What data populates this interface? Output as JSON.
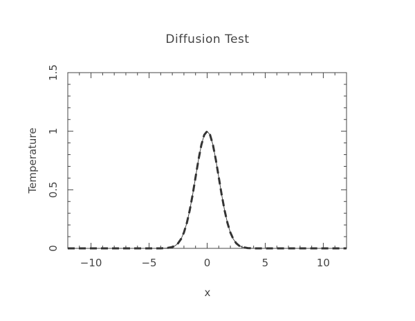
{
  "chart_data": {
    "type": "line",
    "title": "Diffusion Test",
    "xlabel": "x",
    "ylabel": "Temperature",
    "xlim": [
      -12,
      12
    ],
    "ylim": [
      0,
      1.5
    ],
    "x_ticks": [
      -10,
      -5,
      0,
      5,
      10
    ],
    "x_tick_labels": [
      "−10",
      "−5",
      "0",
      "5",
      "10"
    ],
    "y_ticks": [
      0,
      0.5,
      1,
      1.5
    ],
    "y_tick_labels": [
      "0",
      "0.5",
      "1",
      "1.5"
    ],
    "grid": false,
    "colors": {
      "axis": "#444444",
      "solid": "#444444",
      "dashed": "#333333"
    },
    "series": [
      {
        "style": "solid",
        "x": [
          -12,
          -8,
          -5,
          -4,
          -3.5,
          -3,
          -2.75,
          -2.5,
          -2.25,
          -2,
          -1.75,
          -1.5,
          -1.25,
          -1,
          -0.75,
          -0.5,
          -0.25,
          0,
          0.25,
          0.5,
          0.75,
          1,
          1.25,
          1.5,
          1.75,
          2,
          2.25,
          2.5,
          2.75,
          3,
          3.5,
          4,
          5,
          8,
          12
        ],
        "y": [
          0,
          0,
          0,
          0.0003,
          0.0022,
          0.0111,
          0.0228,
          0.0439,
          0.0796,
          0.1353,
          0.2163,
          0.3247,
          0.4578,
          0.6065,
          0.7548,
          0.8825,
          0.9692,
          1.0,
          0.9692,
          0.8825,
          0.7548,
          0.6065,
          0.4578,
          0.3247,
          0.2163,
          0.1353,
          0.0796,
          0.0439,
          0.0228,
          0.0111,
          0.0022,
          0.0003,
          0,
          0,
          0
        ]
      },
      {
        "style": "dashed",
        "x": [
          -12,
          -8,
          -5,
          -4,
          -3.5,
          -3,
          -2.75,
          -2.5,
          -2.25,
          -2,
          -1.75,
          -1.5,
          -1.25,
          -1,
          -0.75,
          -0.5,
          -0.25,
          0,
          0.25,
          0.5,
          0.75,
          1,
          1.25,
          1.5,
          1.75,
          2,
          2.25,
          2.5,
          2.75,
          3,
          3.5,
          4,
          5,
          8,
          12
        ],
        "y": [
          0,
          0,
          0,
          0.0003,
          0.0022,
          0.0111,
          0.0228,
          0.0439,
          0.0796,
          0.1353,
          0.2163,
          0.3247,
          0.4578,
          0.6065,
          0.7548,
          0.8825,
          0.9692,
          1.0,
          0.9692,
          0.8825,
          0.7548,
          0.6065,
          0.4578,
          0.3247,
          0.2163,
          0.1353,
          0.0796,
          0.0439,
          0.0228,
          0.0111,
          0.0022,
          0.0003,
          0,
          0,
          0
        ]
      }
    ]
  }
}
